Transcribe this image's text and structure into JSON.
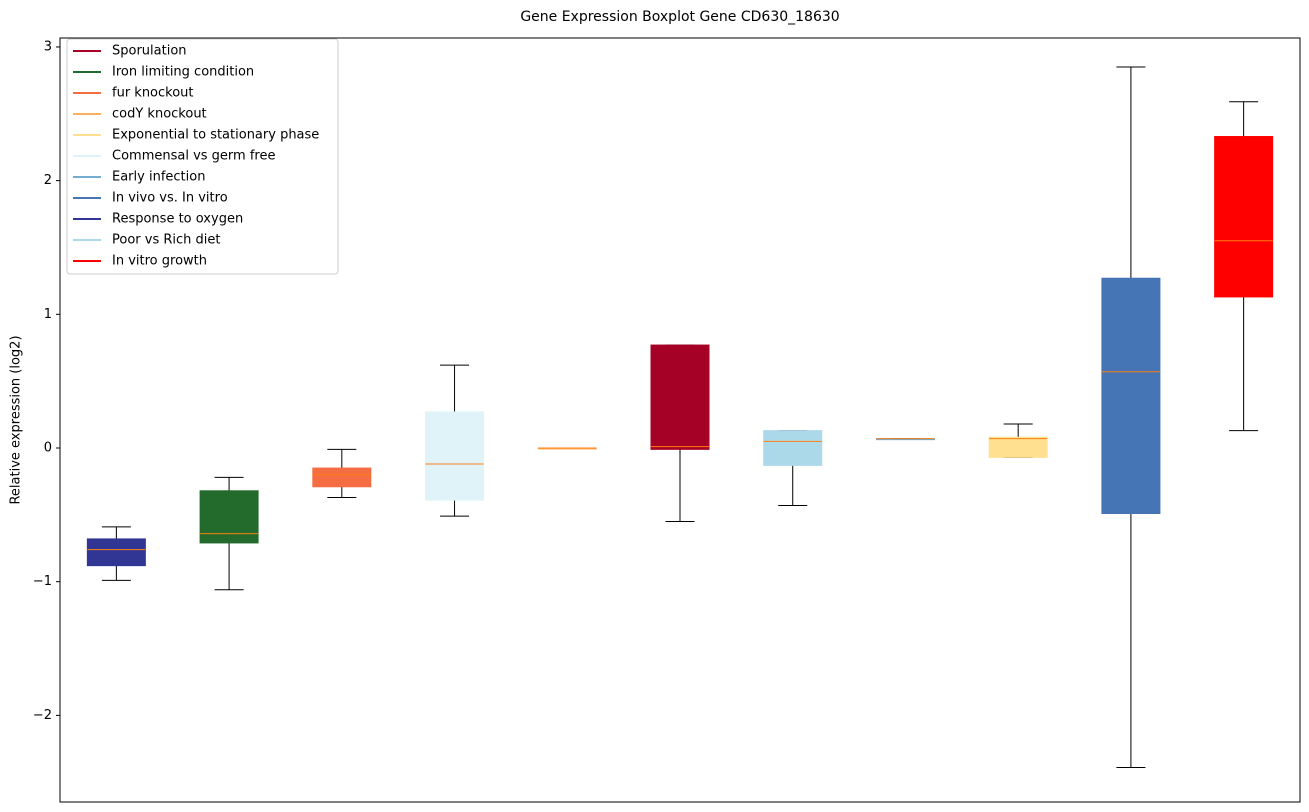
{
  "chart_data": {
    "type": "boxplot",
    "title": "Gene Expression Boxplot Gene CD630_18630",
    "y_label": "Relative expression (log2)",
    "ylim": [
      -2.648,
      3.067
    ],
    "yticks": [
      {
        "value": -2,
        "label": "−2"
      },
      {
        "value": -1,
        "label": "−1"
      },
      0,
      1,
      2,
      3
    ],
    "median_color": "#ff7f0e",
    "legend_position": "upper left",
    "legend": [
      {
        "name": "Sporulation",
        "color": "#a50026"
      },
      {
        "name": "Iron limiting condition",
        "color": "#236b2d"
      },
      {
        "name": "fur knockout",
        "color": "#f46d43"
      },
      {
        "name": "codY knockout",
        "color": "#fdae61"
      },
      {
        "name": "Exponential to stationary phase",
        "color": "#fee090"
      },
      {
        "name": "Commensal vs germ free",
        "color": "#e0f3f8"
      },
      {
        "name": "Early infection",
        "color": "#74add1"
      },
      {
        "name": "In vivo vs. In vitro",
        "color": "#4575b4"
      },
      {
        "name": "Response to oxygen",
        "color": "#313695"
      },
      {
        "name": "Poor vs Rich diet",
        "color": "#abd9e9"
      },
      {
        "name": "In vitro growth",
        "color": "#ff0000"
      }
    ],
    "boxes": [
      {
        "color": "#313695",
        "min": -0.99,
        "q1": -0.88,
        "median": -0.76,
        "q3": -0.68,
        "max": -0.59
      },
      {
        "color": "#236b2d",
        "min": -1.06,
        "q1": -0.71,
        "median": -0.64,
        "q3": -0.32,
        "max": -0.22
      },
      {
        "color": "#f46d43",
        "min": -0.37,
        "q1": -0.29,
        "median": -0.2,
        "q3": -0.15,
        "max": -0.01
      },
      {
        "color": "#e0f3f8",
        "min": -0.51,
        "q1": -0.39,
        "median": -0.12,
        "q3": 0.27,
        "max": 0.62
      },
      {
        "color": "#fdae61",
        "min": 0,
        "q1": 0,
        "median": 0,
        "q3": 0,
        "max": 0
      },
      {
        "color": "#a50026",
        "min": -0.55,
        "q1": -0.01,
        "median": 0.01,
        "q3": 0.77,
        "max": 0.77
      },
      {
        "color": "#abd9e9",
        "min": -0.43,
        "q1": -0.13,
        "median": 0.05,
        "q3": 0.13,
        "max": 0.13
      },
      {
        "color": "#74add1",
        "min": 0.07,
        "q1": 0.07,
        "median": 0.07,
        "q3": 0.07,
        "max": 0.07
      },
      {
        "color": "#fee090",
        "min": -0.07,
        "q1": -0.07,
        "median": 0.07,
        "q3": 0.08,
        "max": 0.18
      },
      {
        "color": "#4575b4",
        "min": -2.39,
        "q1": -0.49,
        "median": 0.57,
        "q3": 1.27,
        "max": 2.85
      },
      {
        "color": "#ff0000",
        "min": 0.13,
        "q1": 1.13,
        "median": 1.55,
        "q3": 2.33,
        "max": 2.59
      }
    ]
  }
}
